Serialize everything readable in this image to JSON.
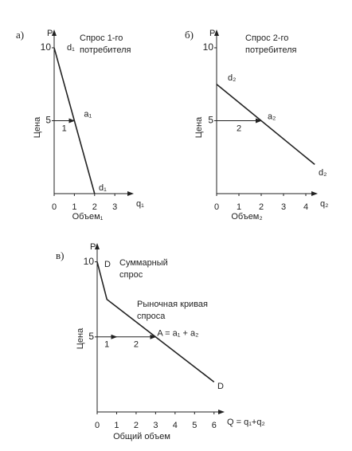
{
  "chart_data": [
    {
      "type": "line",
      "panel": "а)",
      "title": [
        "Спрос 1-го",
        "потребителя"
      ],
      "y_axis_letter": "P",
      "x_axis_letter": "q₁",
      "ylabel": "Цена",
      "xlabel": "Объем₁",
      "xlim": [
        0,
        3.9
      ],
      "ylim": [
        0,
        11.2
      ],
      "xticks": [
        0,
        1,
        2,
        3
      ],
      "yticks": [
        5,
        10
      ],
      "series": [
        {
          "x": [
            0,
            2
          ],
          "values": [
            10,
            0
          ],
          "color": "#222"
        }
      ],
      "curve_labels": [
        "d₁",
        "d₁"
      ],
      "points": [
        {
          "x": 1,
          "y": 5,
          "label": "a₁"
        }
      ],
      "arrows": [
        {
          "x": [
            0,
            1
          ],
          "y": [
            5,
            5
          ],
          "label": "1"
        }
      ]
    },
    {
      "type": "line",
      "panel": "б)",
      "title": [
        "Спрос 2-го",
        "потребителя"
      ],
      "y_axis_letter": "P",
      "x_axis_letter": "q₂",
      "ylabel": "Цена",
      "xlabel": "Объем₂",
      "xlim": [
        0,
        4.5
      ],
      "ylim": [
        0,
        11.2
      ],
      "xticks": [
        0,
        1,
        2,
        3,
        4
      ],
      "yticks": [
        5,
        10
      ],
      "series": [
        {
          "x": [
            0,
            4.4
          ],
          "values": [
            7.5,
            2
          ],
          "color": "#222"
        }
      ],
      "curve_labels": [
        "d₂",
        "d₂"
      ],
      "points": [
        {
          "x": 2,
          "y": 5,
          "label": "a₂"
        }
      ],
      "arrows": [
        {
          "x": [
            0,
            2
          ],
          "y": [
            5,
            5
          ],
          "label": "2"
        }
      ]
    },
    {
      "type": "line",
      "panel": "в)",
      "title": [
        "Суммарный",
        "спрос"
      ],
      "y_axis_letter": "P",
      "x_axis_letter": "Q = q₁+q₂",
      "ylabel": "Цена",
      "xlabel": "Общий объем",
      "xlim": [
        0,
        6.5
      ],
      "ylim": [
        0,
        11.2
      ],
      "xticks": [
        0,
        1,
        2,
        3,
        4,
        5,
        6
      ],
      "yticks": [
        5,
        10
      ],
      "series": [
        {
          "x": [
            0,
            0.5,
            6
          ],
          "values": [
            10,
            7.5,
            2
          ],
          "color": "#222"
        }
      ],
      "curve_labels": [
        "D",
        "D"
      ],
      "points": [
        {
          "x": 3,
          "y": 5,
          "label": "A = a₁ + a₂"
        }
      ],
      "arrows": [
        {
          "x": [
            0,
            1
          ],
          "y": [
            5,
            5
          ],
          "label": "1"
        },
        {
          "x": [
            1,
            3
          ],
          "y": [
            5,
            5
          ],
          "label": "2"
        }
      ],
      "annotations": [
        [
          "Рыночная кривая",
          "спроса"
        ]
      ]
    }
  ]
}
